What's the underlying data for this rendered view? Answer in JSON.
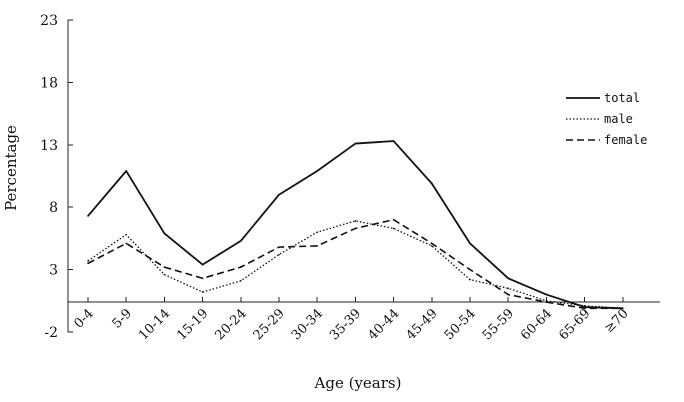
{
  "chart_data": {
    "type": "line",
    "title": "",
    "xlabel": "Age (years)",
    "ylabel": "Percentage",
    "ylim": [
      -2,
      23
    ],
    "yticks": [
      -2,
      3,
      8,
      13,
      18,
      23
    ],
    "grid": false,
    "legend_position": "top-right",
    "categories": [
      "0-4",
      "5-9",
      "10-14",
      "15-19",
      "20-24",
      "25-29",
      "30-34",
      "35-39",
      "40-44",
      "45-49",
      "50-54",
      "55-59",
      "60-64",
      "65-69",
      "≥70"
    ],
    "series": [
      {
        "name": "total",
        "style": "solid",
        "color": "#111111",
        "values": [
          7.3,
          10.9,
          5.9,
          3.4,
          5.3,
          9.0,
          10.9,
          13.1,
          13.3,
          9.9,
          5.1,
          2.3,
          1.0,
          0.0,
          -0.1
        ]
      },
      {
        "name": "male",
        "style": "dotted",
        "color": "#111111",
        "values": [
          3.7,
          5.8,
          2.6,
          1.2,
          2.1,
          4.2,
          6.0,
          6.9,
          6.3,
          4.9,
          2.2,
          1.5,
          0.5,
          0.1,
          -0.1
        ]
      },
      {
        "name": "female",
        "style": "dashed",
        "color": "#111111",
        "values": [
          3.5,
          5.1,
          3.2,
          2.3,
          3.2,
          4.8,
          4.9,
          6.3,
          7.0,
          5.1,
          3.0,
          1.0,
          0.4,
          -0.1,
          -0.1
        ]
      }
    ]
  }
}
